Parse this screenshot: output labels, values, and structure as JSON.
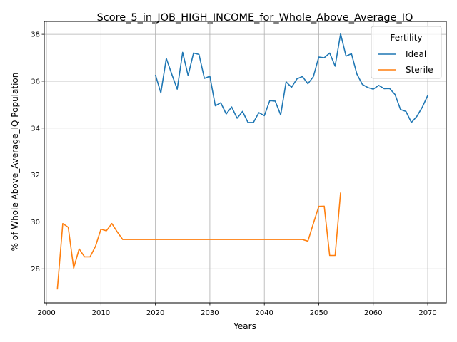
{
  "chart_data": {
    "type": "line",
    "title": "Score_5_in_JOB_HIGH_INCOME_for_Whole_Above_Average_IQ",
    "xlabel": "Years",
    "ylabel": "% of Whole Above_Average_IQ Population",
    "xlim": [
      1999.6,
      2073.4
    ],
    "ylim": [
      26.55,
      38.55
    ],
    "xticks": [
      2000,
      2010,
      2020,
      2030,
      2040,
      2050,
      2060,
      2070
    ],
    "yticks": [
      28,
      30,
      32,
      34,
      36,
      38
    ],
    "grid": true,
    "legend": {
      "title": "Fertility",
      "placement": "top-right"
    },
    "series": [
      {
        "name": "Ideal",
        "color": "#1f77b4",
        "x": [
          2020,
          2021,
          2022,
          2023,
          2024,
          2025,
          2026,
          2027,
          2028,
          2029,
          2030,
          2031,
          2032,
          2033,
          2034,
          2035,
          2036,
          2037,
          2038,
          2039,
          2040,
          2041,
          2042,
          2043,
          2044,
          2045,
          2046,
          2047,
          2048,
          2049,
          2050,
          2051,
          2052,
          2053,
          2054,
          2055,
          2056,
          2057,
          2058,
          2059,
          2060,
          2061,
          2062,
          2063,
          2064,
          2065,
          2066,
          2067,
          2068,
          2069,
          2070
        ],
        "y": [
          36.27,
          35.5,
          36.97,
          36.3,
          35.66,
          37.23,
          36.24,
          37.2,
          37.14,
          36.12,
          36.21,
          34.95,
          35.08,
          34.6,
          34.9,
          34.42,
          34.71,
          34.24,
          34.24,
          34.66,
          34.53,
          35.17,
          35.15,
          34.56,
          35.97,
          35.74,
          36.1,
          36.2,
          35.89,
          36.19,
          37.03,
          37.0,
          37.2,
          36.64,
          38.02,
          37.07,
          37.17,
          36.3,
          35.86,
          35.73,
          35.66,
          35.82,
          35.68,
          35.69,
          35.43,
          34.79,
          34.71,
          34.24,
          34.5,
          34.89,
          35.39
        ]
      },
      {
        "name": "Sterile",
        "color": "#ff7f0e",
        "x": [
          2002,
          2003,
          2004,
          2005,
          2006,
          2007,
          2008,
          2009,
          2010,
          2011,
          2012,
          2013,
          2014,
          2015,
          2016,
          2017,
          2018,
          2019,
          2020,
          2021,
          2022,
          2023,
          2024,
          2025,
          2026,
          2027,
          2028,
          2029,
          2030,
          2031,
          2032,
          2033,
          2034,
          2035,
          2036,
          2037,
          2038,
          2039,
          2040,
          2041,
          2042,
          2043,
          2044,
          2045,
          2046,
          2047,
          2048,
          2049,
          2050,
          2051,
          2052,
          2053,
          2054
        ],
        "y": [
          27.12,
          29.93,
          29.77,
          28.03,
          28.85,
          28.51,
          28.51,
          28.96,
          29.69,
          29.62,
          29.93,
          29.57,
          29.25,
          29.25,
          29.25,
          29.25,
          29.25,
          29.25,
          29.25,
          29.25,
          29.25,
          29.25,
          29.25,
          29.25,
          29.25,
          29.25,
          29.25,
          29.25,
          29.25,
          29.25,
          29.25,
          29.25,
          29.25,
          29.25,
          29.25,
          29.25,
          29.25,
          29.25,
          29.25,
          29.25,
          29.25,
          29.25,
          29.25,
          29.25,
          29.25,
          29.25,
          29.18,
          29.93,
          30.66,
          30.67,
          28.57,
          28.57,
          31.25
        ]
      }
    ]
  }
}
